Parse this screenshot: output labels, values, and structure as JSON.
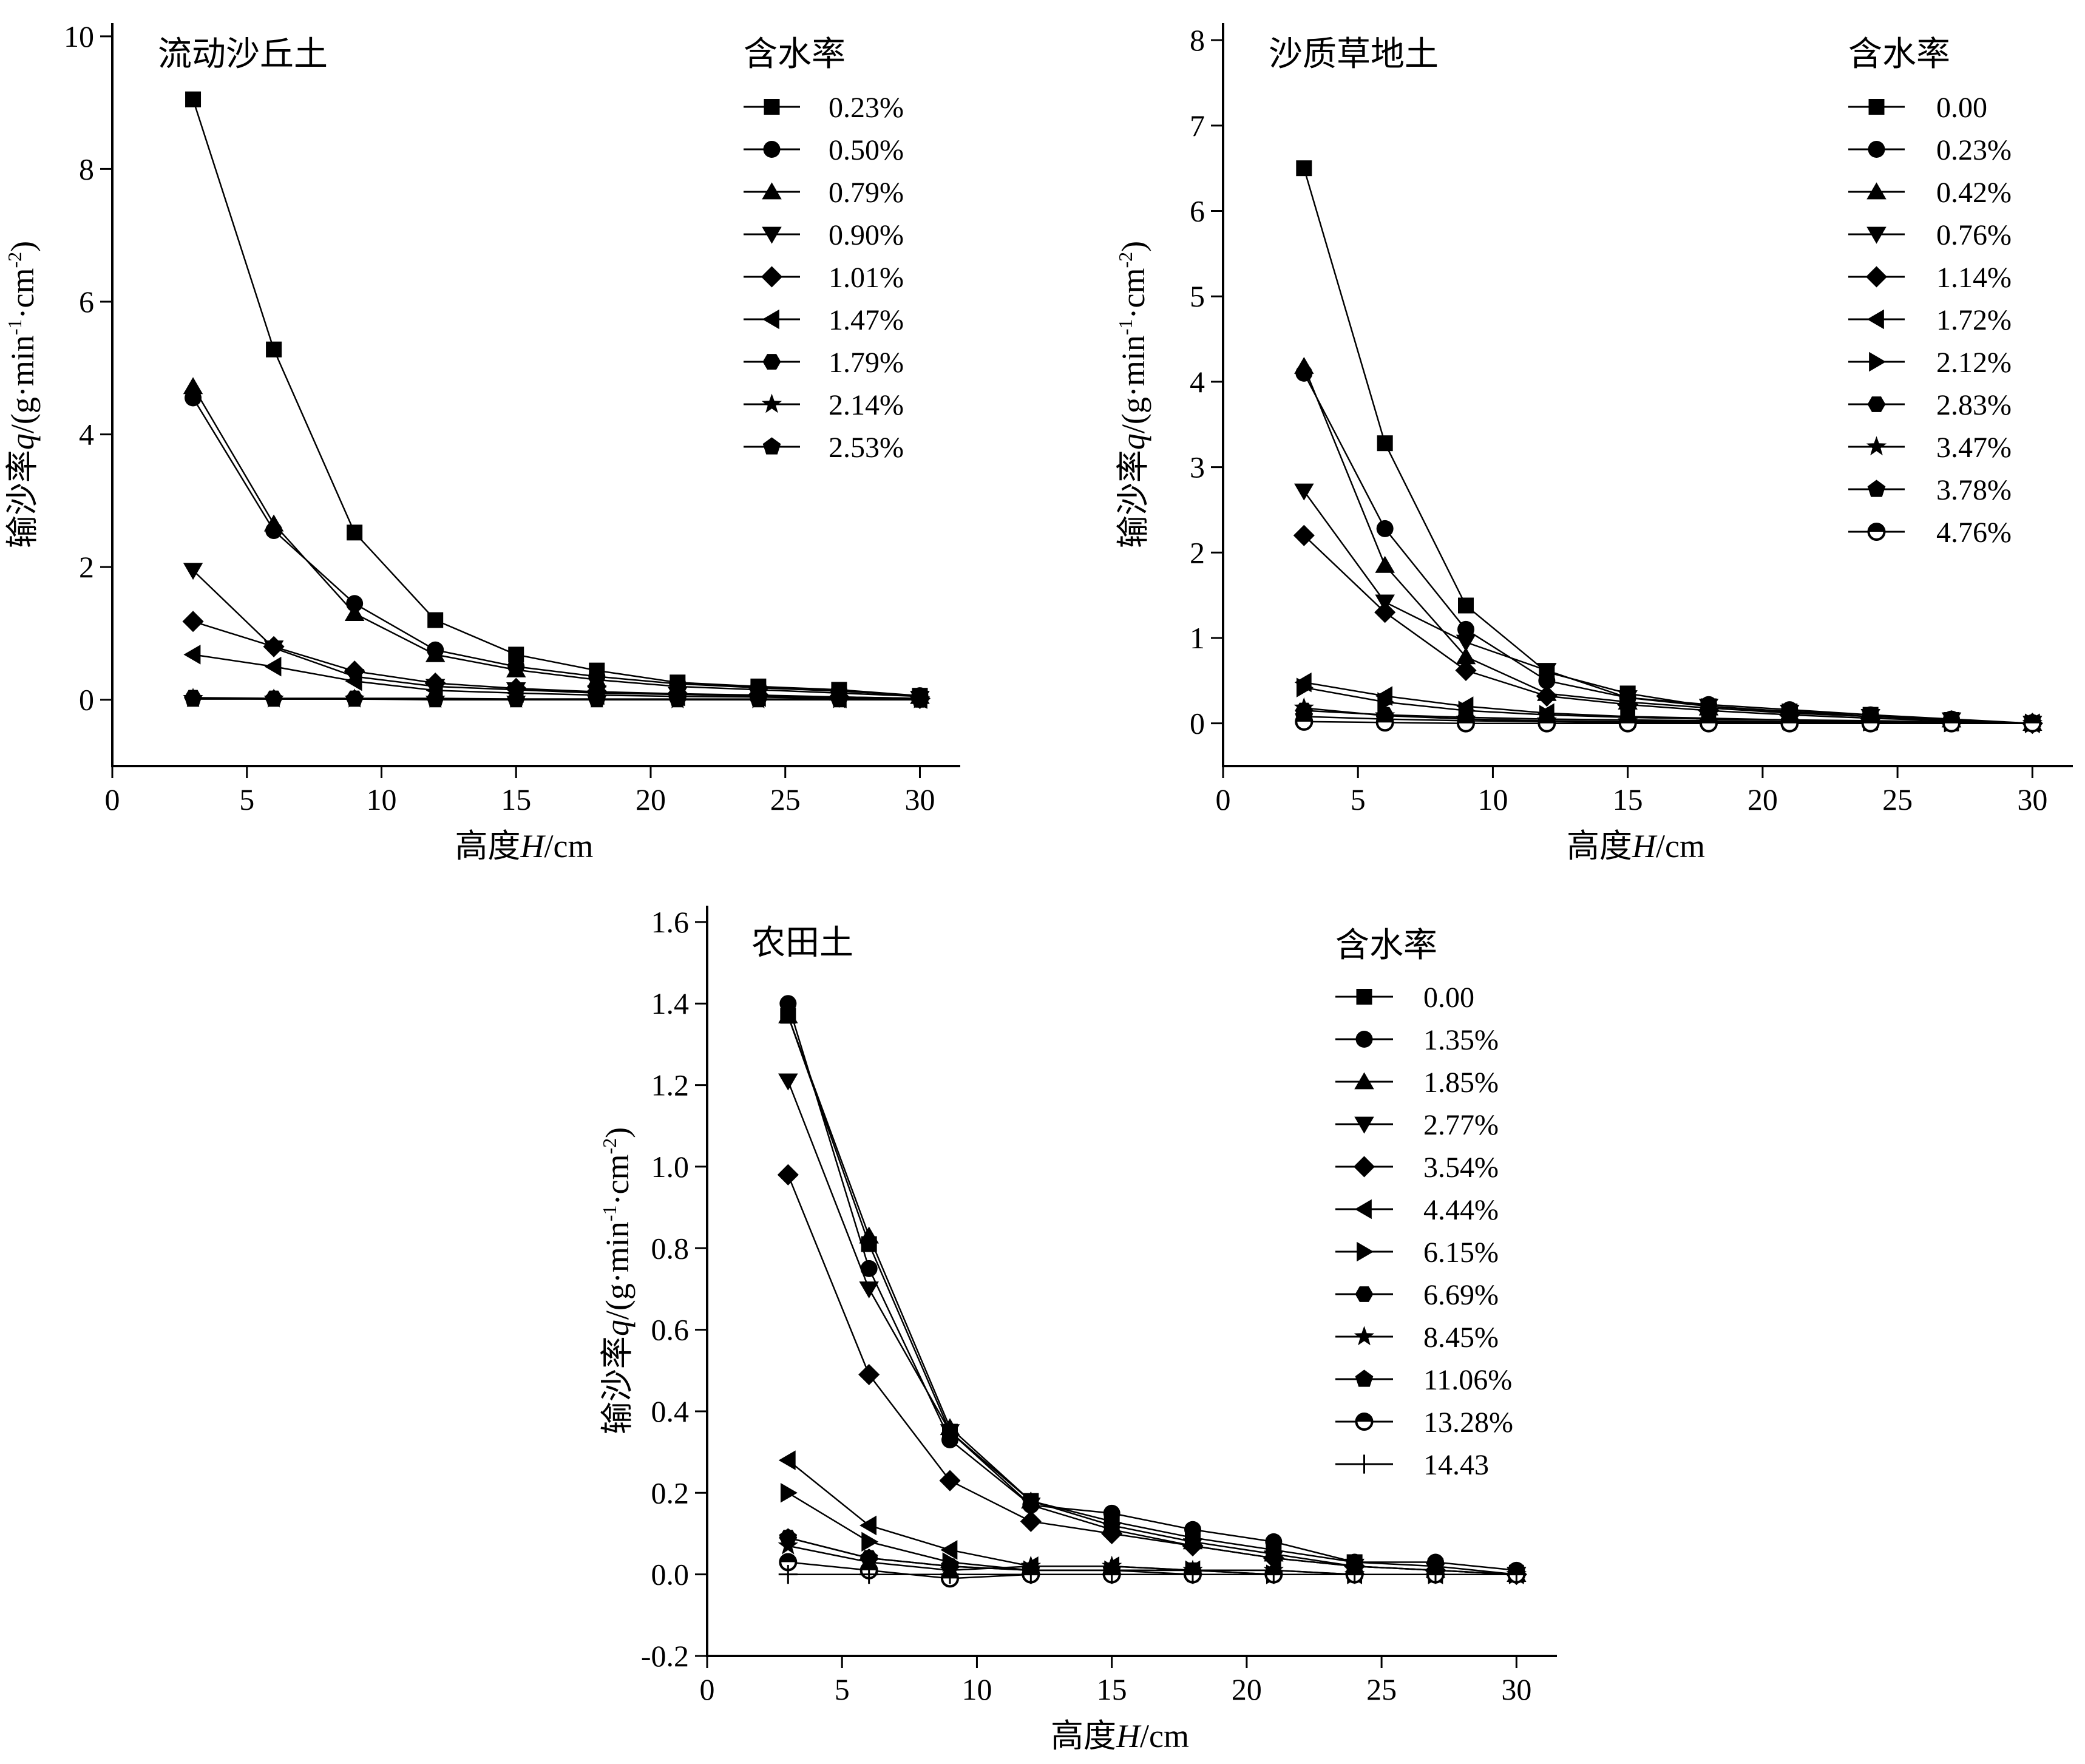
{
  "chart_data": [
    {
      "id": "dune",
      "type": "line",
      "title": "流动沙丘土",
      "xlabel_cjk": "高度",
      "xlabel_var": "H",
      "xlabel_unit": "/cm",
      "ylabel_cjk": "输沙率",
      "ylabel_var": "q",
      "ylabel_unit_a": "/(g·min",
      "ylabel_sup1": "-1",
      "ylabel_unit_b": "·cm",
      "ylabel_sup2": "-2",
      "ylabel_unit_c": ")",
      "legend_title": "含水率",
      "xlim": [
        0,
        31.5
      ],
      "ylim": [
        -1,
        10.2
      ],
      "xticks": [
        0,
        5,
        10,
        15,
        20,
        25,
        30
      ],
      "yticks": [
        0,
        2,
        4,
        6,
        8,
        10
      ],
      "ytick_labels": [
        "0",
        "2",
        "4",
        "6",
        "8",
        "10"
      ],
      "x": [
        3,
        6,
        9,
        12,
        15,
        18,
        21,
        24,
        27,
        30
      ],
      "series": [
        {
          "name": "0.23%",
          "marker": "square",
          "values": [
            9.05,
            5.28,
            2.52,
            1.2,
            0.68,
            0.44,
            0.26,
            0.2,
            0.15,
            0.06
          ]
        },
        {
          "name": "0.50%",
          "marker": "circle",
          "values": [
            4.55,
            2.55,
            1.45,
            0.75,
            0.5,
            0.35,
            0.24,
            0.18,
            0.13,
            0.06
          ]
        },
        {
          "name": "0.79%",
          "marker": "triangle-up",
          "values": [
            4.72,
            2.65,
            1.3,
            0.68,
            0.45,
            0.3,
            0.2,
            0.15,
            0.1,
            0.05
          ]
        },
        {
          "name": "0.90%",
          "marker": "triangle-down",
          "values": [
            1.95,
            0.78,
            0.35,
            0.2,
            0.15,
            0.1,
            0.08,
            0.06,
            0.04,
            0.02
          ]
        },
        {
          "name": "1.01%",
          "marker": "diamond",
          "values": [
            1.18,
            0.8,
            0.43,
            0.25,
            0.17,
            0.12,
            0.09,
            0.07,
            0.04,
            0.02
          ]
        },
        {
          "name": "1.47%",
          "marker": "triangle-left",
          "values": [
            0.68,
            0.5,
            0.28,
            0.14,
            0.1,
            0.07,
            0.05,
            0.04,
            0.02,
            0.01
          ]
        },
        {
          "name": "1.79%",
          "marker": "hexagon",
          "values": [
            0.03,
            0.02,
            0.02,
            0.02,
            0.01,
            0.01,
            0.01,
            0.01,
            0.01,
            0.0
          ]
        },
        {
          "name": "2.14%",
          "marker": "star",
          "values": [
            0.02,
            0.01,
            0.01,
            0.01,
            0.01,
            0.01,
            0.0,
            0.0,
            0.0,
            0.0
          ]
        },
        {
          "name": "2.53%",
          "marker": "pentagon",
          "values": [
            0.01,
            0.01,
            0.01,
            0.0,
            0.0,
            0.0,
            0.0,
            0.0,
            0.0,
            0.0
          ]
        }
      ]
    },
    {
      "id": "grass",
      "type": "line",
      "title": "沙质草地土",
      "xlabel_cjk": "高度",
      "xlabel_var": "H",
      "xlabel_unit": "/cm",
      "ylabel_cjk": "输沙率",
      "ylabel_var": "q",
      "ylabel_unit_a": "/(g·min",
      "ylabel_sup1": "-1",
      "ylabel_unit_b": "·cm",
      "ylabel_sup2": "-2",
      "ylabel_unit_c": ")",
      "legend_title": "含水率",
      "xlim": [
        0,
        31.5
      ],
      "ylim": [
        -0.5,
        8.2
      ],
      "xticks": [
        0,
        5,
        10,
        15,
        20,
        25,
        30
      ],
      "yticks": [
        0,
        1,
        2,
        3,
        4,
        5,
        6,
        7,
        8
      ],
      "ytick_labels": [
        "0",
        "1",
        "2",
        "3",
        "4",
        "5",
        "6",
        "7",
        "8"
      ],
      "x": [
        3,
        6,
        9,
        12,
        15,
        18,
        21,
        24,
        27,
        30
      ],
      "series": [
        {
          "name": "0.00",
          "marker": "square",
          "values": [
            6.5,
            3.28,
            1.38,
            0.6,
            0.35,
            0.2,
            0.14,
            0.1,
            0.04,
            0.0
          ]
        },
        {
          "name": "0.23%",
          "marker": "circle",
          "values": [
            4.1,
            2.28,
            1.1,
            0.5,
            0.3,
            0.22,
            0.16,
            0.1,
            0.05,
            0.0
          ]
        },
        {
          "name": "0.42%",
          "marker": "triangle-up",
          "values": [
            4.18,
            1.85,
            0.78,
            0.35,
            0.25,
            0.18,
            0.12,
            0.08,
            0.04,
            0.0
          ]
        },
        {
          "name": "0.76%",
          "marker": "triangle-down",
          "values": [
            2.72,
            1.42,
            0.95,
            0.62,
            0.3,
            0.2,
            0.13,
            0.08,
            0.04,
            0.0
          ]
        },
        {
          "name": "1.14%",
          "marker": "diamond",
          "values": [
            2.2,
            1.3,
            0.62,
            0.32,
            0.22,
            0.15,
            0.1,
            0.06,
            0.03,
            0.0
          ]
        },
        {
          "name": "1.72%",
          "marker": "triangle-left",
          "values": [
            0.48,
            0.32,
            0.2,
            0.12,
            0.08,
            0.06,
            0.04,
            0.03,
            0.02,
            0.0
          ]
        },
        {
          "name": "2.12%",
          "marker": "triangle-right",
          "values": [
            0.42,
            0.25,
            0.15,
            0.1,
            0.07,
            0.05,
            0.04,
            0.02,
            0.01,
            0.0
          ]
        },
        {
          "name": "2.83%",
          "marker": "hexagon",
          "values": [
            0.15,
            0.1,
            0.07,
            0.05,
            0.04,
            0.03,
            0.02,
            0.02,
            0.01,
            0.0
          ]
        },
        {
          "name": "3.47%",
          "marker": "star",
          "values": [
            0.18,
            0.09,
            0.05,
            0.03,
            0.02,
            0.02,
            0.01,
            0.01,
            0.0,
            0.0
          ]
        },
        {
          "name": "3.78%",
          "marker": "pentagon",
          "values": [
            0.08,
            0.05,
            0.03,
            0.02,
            0.01,
            0.01,
            0.01,
            0.01,
            0.0,
            0.0
          ]
        },
        {
          "name": "4.76%",
          "marker": "circle-half",
          "values": [
            0.02,
            0.01,
            0.0,
            0.0,
            0.0,
            0.0,
            0.0,
            0.0,
            0.0,
            0.0
          ]
        }
      ]
    },
    {
      "id": "farm",
      "type": "line",
      "title": "农田土",
      "xlabel_cjk": "高度",
      "xlabel_var": "H",
      "xlabel_unit": "/cm",
      "ylabel_cjk": "输沙率",
      "ylabel_var": "q",
      "ylabel_unit_a": "/(g·min",
      "ylabel_sup1": "-1",
      "ylabel_unit_b": "·cm",
      "ylabel_sup2": "-2",
      "ylabel_unit_c": ")",
      "legend_title": "含水率",
      "xlim": [
        0,
        31.5
      ],
      "ylim": [
        -0.2,
        1.64
      ],
      "xticks": [
        0,
        5,
        10,
        15,
        20,
        25,
        30
      ],
      "yticks": [
        -0.2,
        0.0,
        0.2,
        0.4,
        0.6,
        0.8,
        1.0,
        1.2,
        1.4,
        1.6
      ],
      "ytick_labels": [
        "-0.2",
        "0.0",
        "0.2",
        "0.4",
        "0.6",
        "0.8",
        "1.0",
        "1.2",
        "1.4",
        "1.6"
      ],
      "x": [
        3,
        6,
        9,
        12,
        15,
        18,
        21,
        24,
        27,
        30
      ],
      "series": [
        {
          "name": "0.00",
          "marker": "square",
          "values": [
            1.37,
            0.81,
            0.35,
            0.18,
            0.13,
            0.09,
            0.06,
            0.03,
            0.02,
            0.0
          ]
        },
        {
          "name": "1.35%",
          "marker": "circle",
          "values": [
            1.4,
            0.75,
            0.33,
            0.17,
            0.15,
            0.11,
            0.08,
            0.03,
            0.03,
            0.01
          ]
        },
        {
          "name": "1.85%",
          "marker": "triangle-up",
          "values": [
            1.37,
            0.83,
            0.36,
            0.18,
            0.12,
            0.08,
            0.05,
            0.02,
            0.01,
            0.0
          ]
        },
        {
          "name": "2.77%",
          "marker": "triangle-down",
          "values": [
            1.21,
            0.7,
            0.35,
            0.17,
            0.11,
            0.07,
            0.04,
            0.02,
            0.01,
            0.0
          ]
        },
        {
          "name": "3.54%",
          "marker": "diamond",
          "values": [
            0.98,
            0.49,
            0.23,
            0.13,
            0.1,
            0.07,
            0.04,
            0.02,
            0.01,
            0.0
          ]
        },
        {
          "name": "4.44%",
          "marker": "triangle-left",
          "values": [
            0.28,
            0.12,
            0.06,
            0.02,
            0.02,
            0.01,
            0.01,
            0.0,
            0.0,
            0.0
          ]
        },
        {
          "name": "6.15%",
          "marker": "triangle-right",
          "values": [
            0.2,
            0.08,
            0.03,
            0.01,
            0.01,
            0.01,
            0.0,
            0.0,
            0.0,
            0.0
          ]
        },
        {
          "name": "6.69%",
          "marker": "hexagon",
          "values": [
            0.09,
            0.04,
            0.02,
            0.01,
            0.01,
            0.01,
            0.0,
            0.0,
            0.0,
            0.0
          ]
        },
        {
          "name": "8.45%",
          "marker": "star",
          "values": [
            0.07,
            0.03,
            0.01,
            0.02,
            0.02,
            0.01,
            0.01,
            0.0,
            0.0,
            0.0
          ]
        },
        {
          "name": "11.06%",
          "marker": "pentagon",
          "values": [
            0.09,
            0.04,
            0.02,
            0.01,
            0.01,
            0.0,
            0.0,
            0.0,
            0.0,
            0.0
          ]
        },
        {
          "name": "13.28%",
          "marker": "circle-half",
          "values": [
            0.03,
            0.01,
            -0.01,
            0.0,
            0.0,
            0.0,
            0.0,
            0.0,
            0.0,
            0.0
          ]
        },
        {
          "name": "14.43",
          "marker": "plus",
          "values": [
            0.0,
            0.0,
            0.0,
            0.0,
            0.0,
            0.0,
            0.0,
            0.0,
            0.0,
            0.0
          ]
        }
      ]
    }
  ]
}
